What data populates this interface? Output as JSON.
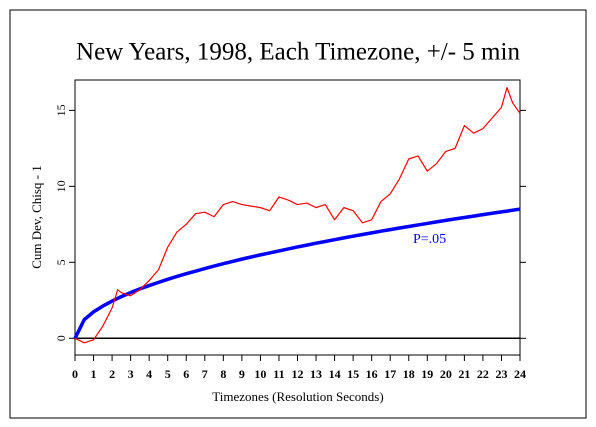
{
  "chart_data": {
    "type": "line",
    "title": "New Years, 1998, Each Timezone, +/- 5 min",
    "x_label": "Timezones (Resolution Seconds)",
    "y_label": "Cum Dev, Chisq - 1",
    "annotation": "P=.05",
    "x": [
      0,
      0.5,
      1,
      1.5,
      2,
      2.3,
      2.5,
      3,
      3.5,
      4,
      4.5,
      5,
      5.5,
      6,
      6.5,
      7,
      7.5,
      8,
      8.5,
      9,
      9.5,
      10,
      10.5,
      11,
      11.5,
      12,
      12.5,
      13,
      13.5,
      14,
      14.5,
      15,
      15.5,
      16,
      16.5,
      17,
      17.5,
      18,
      18.5,
      19,
      19.5,
      20,
      20.5,
      21,
      21.5,
      22,
      22.5,
      23,
      23.3,
      23.6,
      24
    ],
    "series": [
      {
        "name": "Cum Dev",
        "color": "#ff0000",
        "width": 1.2,
        "values": [
          0,
          -0.3,
          -0.1,
          0.8,
          2.0,
          3.2,
          3.0,
          2.8,
          3.2,
          3.8,
          4.5,
          6.0,
          7.0,
          7.5,
          8.2,
          8.3,
          8.0,
          8.8,
          9.0,
          8.8,
          8.7,
          8.6,
          8.4,
          9.3,
          9.1,
          8.8,
          8.9,
          8.6,
          8.8,
          7.8,
          8.6,
          8.4,
          7.6,
          7.8,
          9.0,
          9.5,
          10.5,
          11.8,
          12.0,
          11.0,
          11.5,
          12.3,
          12.5,
          14.0,
          13.5,
          13.8,
          14.5,
          15.2,
          16.5,
          15.5,
          14.8
        ]
      },
      {
        "name": "P=.05",
        "color": "#0000ff",
        "width": 3.5,
        "values": [
          0,
          1.23,
          1.74,
          2.12,
          2.45,
          2.63,
          2.74,
          3.01,
          3.25,
          3.47,
          3.68,
          3.88,
          4.07,
          4.25,
          4.42,
          4.59,
          4.75,
          4.91,
          5.06,
          5.21,
          5.35,
          5.49,
          5.62,
          5.75,
          5.88,
          6.01,
          6.13,
          6.26,
          6.37,
          6.49,
          6.61,
          6.72,
          6.83,
          6.94,
          7.05,
          7.15,
          7.26,
          7.36,
          7.46,
          7.56,
          7.66,
          7.76,
          7.86,
          7.95,
          8.04,
          8.14,
          8.23,
          8.32,
          8.37,
          8.43,
          8.5
        ]
      }
    ],
    "reference_line": 0,
    "xlim": [
      0,
      24
    ],
    "xticks": [
      0,
      1,
      2,
      3,
      4,
      5,
      6,
      7,
      8,
      9,
      10,
      11,
      12,
      13,
      14,
      15,
      16,
      17,
      18,
      19,
      20,
      21,
      22,
      23,
      24
    ],
    "ylim": [
      -1.1,
      17
    ],
    "yticks": [
      0,
      5,
      10,
      15
    ]
  }
}
